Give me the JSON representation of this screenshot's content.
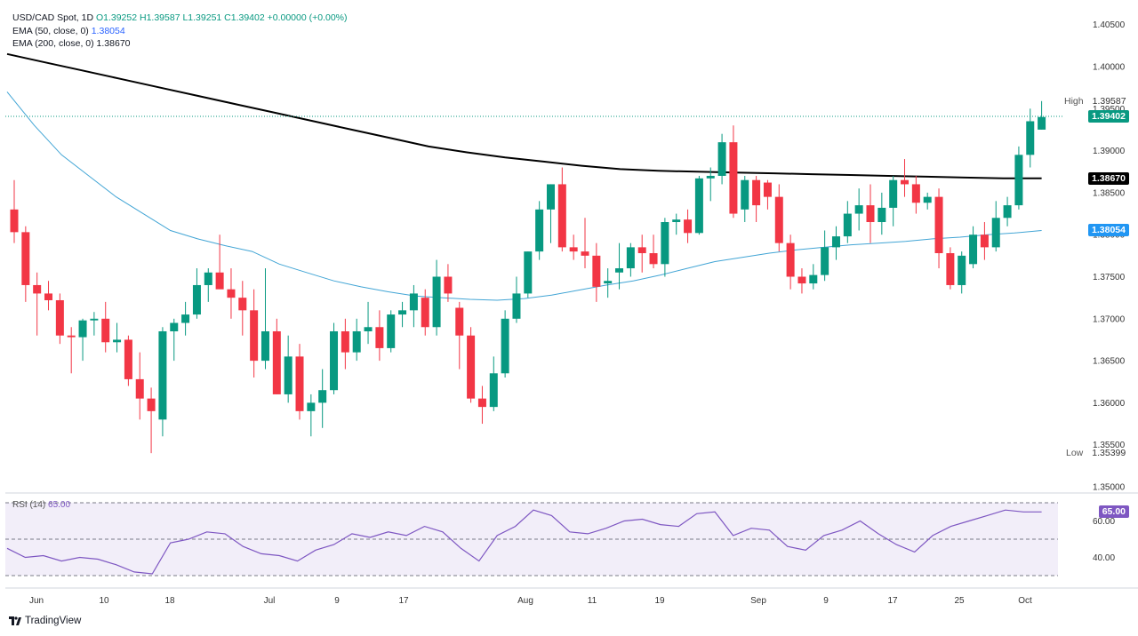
{
  "header": {
    "symbol_line": "USD/CAD Spot, 1D",
    "ohlc": "O1.39252 H1.39587 L1.39251 C1.39402 +0.00000 (+0.00%)",
    "ema50_label": "EMA (50, close, 0)",
    "ema50_value": "1.38054",
    "ema200_label": "EMA (200, close, 0)",
    "ema200_value": "1.38670"
  },
  "rsi_label": {
    "name": "RSI (14)",
    "value": "65.00"
  },
  "price_tags": {
    "high_label": "High",
    "high_value": "1.39587",
    "last": "1.39402",
    "ema200": "1.38670",
    "ema50": "1.38054",
    "low_label": "Low",
    "low_value": "1.35399",
    "rsi": "65.00"
  },
  "brand": "TradingView",
  "colors": {
    "up": "#089981",
    "down": "#f23645",
    "ema50": "#42a5d5",
    "ema200": "#000000",
    "rsi": "#7e57c2"
  },
  "chart_data": {
    "type": "candlestick",
    "y_ticks": [
      "1.40500",
      "1.40000",
      "1.39500",
      "1.39000",
      "1.38500",
      "1.38000",
      "1.37500",
      "1.37000",
      "1.36500",
      "1.36000",
      "1.35500",
      "1.35000"
    ],
    "x_ticks": [
      "Jun",
      "10",
      "18",
      "Jul",
      "9",
      "17",
      "Aug",
      "11",
      "19",
      "Sep",
      "9",
      "17",
      "25",
      "Oct"
    ],
    "ylim": [
      1.3485,
      1.4075
    ],
    "rsi_ticks": [
      "60.00",
      "40.00"
    ],
    "candles": [
      [
        1.383,
        1.3865,
        1.379,
        1.3803
      ],
      [
        1.3803,
        1.381,
        1.372,
        1.374
      ],
      [
        1.374,
        1.3755,
        1.368,
        1.373
      ],
      [
        1.373,
        1.3745,
        1.371,
        1.3722
      ],
      [
        1.3722,
        1.373,
        1.367,
        1.368
      ],
      [
        1.368,
        1.369,
        1.3635,
        1.3678
      ],
      [
        1.3678,
        1.37,
        1.365,
        1.3698
      ],
      [
        1.3698,
        1.3708,
        1.368,
        1.37
      ],
      [
        1.37,
        1.372,
        1.366,
        1.3672
      ],
      [
        1.3672,
        1.3695,
        1.366,
        1.3675
      ],
      [
        1.3675,
        1.368,
        1.362,
        1.3628
      ],
      [
        1.3628,
        1.366,
        1.358,
        1.3605
      ],
      [
        1.3605,
        1.3618,
        1.354,
        1.359
      ],
      [
        1.358,
        1.369,
        1.356,
        1.3685
      ],
      [
        1.3685,
        1.37,
        1.365,
        1.3695
      ],
      [
        1.3695,
        1.372,
        1.368,
        1.3705
      ],
      [
        1.3705,
        1.376,
        1.37,
        1.374
      ],
      [
        1.374,
        1.376,
        1.372,
        1.3755
      ],
      [
        1.3755,
        1.38,
        1.374,
        1.3735
      ],
      [
        1.3735,
        1.376,
        1.37,
        1.3725
      ],
      [
        1.3725,
        1.3745,
        1.368,
        1.371
      ],
      [
        1.371,
        1.3735,
        1.363,
        1.365
      ],
      [
        1.365,
        1.376,
        1.364,
        1.3685
      ],
      [
        1.3685,
        1.37,
        1.361,
        1.361
      ],
      [
        1.361,
        1.368,
        1.36,
        1.3655
      ],
      [
        1.3655,
        1.367,
        1.358,
        1.359
      ],
      [
        1.359,
        1.361,
        1.356,
        1.36
      ],
      [
        1.36,
        1.364,
        1.357,
        1.3615
      ],
      [
        1.3615,
        1.3695,
        1.361,
        1.3685
      ],
      [
        1.3685,
        1.37,
        1.364,
        1.366
      ],
      [
        1.366,
        1.37,
        1.365,
        1.3685
      ],
      [
        1.3685,
        1.372,
        1.367,
        1.369
      ],
      [
        1.369,
        1.371,
        1.365,
        1.3665
      ],
      [
        1.3665,
        1.371,
        1.366,
        1.3705
      ],
      [
        1.3705,
        1.372,
        1.369,
        1.371
      ],
      [
        1.371,
        1.374,
        1.369,
        1.373
      ],
      [
        1.3725,
        1.3735,
        1.368,
        1.369
      ],
      [
        1.369,
        1.377,
        1.368,
        1.375
      ],
      [
        1.375,
        1.3765,
        1.372,
        1.373
      ],
      [
        1.3713,
        1.372,
        1.364,
        1.368
      ],
      [
        1.368,
        1.369,
        1.36,
        1.3605
      ],
      [
        1.3605,
        1.362,
        1.3575,
        1.3595
      ],
      [
        1.3595,
        1.3655,
        1.359,
        1.3635
      ],
      [
        1.3635,
        1.371,
        1.363,
        1.37
      ],
      [
        1.37,
        1.375,
        1.3695,
        1.373
      ],
      [
        1.373,
        1.378,
        1.3725,
        1.378
      ],
      [
        1.378,
        1.384,
        1.377,
        1.383
      ],
      [
        1.383,
        1.386,
        1.379,
        1.386
      ],
      [
        1.386,
        1.388,
        1.378,
        1.3785
      ],
      [
        1.3785,
        1.38,
        1.377,
        1.378
      ],
      [
        1.378,
        1.382,
        1.376,
        1.3775
      ],
      [
        1.3775,
        1.379,
        1.372,
        1.3738
      ],
      [
        1.3742,
        1.376,
        1.3725,
        1.3745
      ],
      [
        1.3755,
        1.379,
        1.3735,
        1.376
      ],
      [
        1.376,
        1.379,
        1.375,
        1.3785
      ],
      [
        1.3785,
        1.38,
        1.3755,
        1.3778
      ],
      [
        1.3778,
        1.38,
        1.376,
        1.3765
      ],
      [
        1.3765,
        1.382,
        1.375,
        1.3815
      ],
      [
        1.3815,
        1.3825,
        1.38,
        1.3818
      ],
      [
        1.3818,
        1.383,
        1.379,
        1.3802
      ],
      [
        1.3802,
        1.387,
        1.38,
        1.3867
      ],
      [
        1.3867,
        1.388,
        1.384,
        1.387
      ],
      [
        1.387,
        1.392,
        1.386,
        1.391
      ],
      [
        1.391,
        1.393,
        1.382,
        1.3825
      ],
      [
        1.383,
        1.387,
        1.3815,
        1.3865
      ],
      [
        1.3865,
        1.387,
        1.3815,
        1.3835
      ],
      [
        1.3862,
        1.3865,
        1.383,
        1.3845
      ],
      [
        1.3845,
        1.386,
        1.378,
        1.379
      ],
      [
        1.379,
        1.38,
        1.3735,
        1.375
      ],
      [
        1.375,
        1.376,
        1.373,
        1.3742
      ],
      [
        1.3742,
        1.3765,
        1.3735,
        1.3752
      ],
      [
        1.3752,
        1.3805,
        1.3745,
        1.3785
      ],
      [
        1.3785,
        1.381,
        1.377,
        1.3798
      ],
      [
        1.3798,
        1.384,
        1.379,
        1.3825
      ],
      [
        1.3825,
        1.3855,
        1.3805,
        1.3835
      ],
      [
        1.3835,
        1.386,
        1.379,
        1.3815
      ],
      [
        1.3815,
        1.385,
        1.38,
        1.3832
      ],
      [
        1.3832,
        1.387,
        1.381,
        1.3865
      ],
      [
        1.3865,
        1.389,
        1.3845,
        1.386
      ],
      [
        1.386,
        1.387,
        1.3825,
        1.3838
      ],
      [
        1.3838,
        1.385,
        1.383,
        1.3845
      ],
      [
        1.3845,
        1.3855,
        1.376,
        1.3778
      ],
      [
        1.3778,
        1.3785,
        1.3735,
        1.374
      ],
      [
        1.374,
        1.378,
        1.373,
        1.3775
      ],
      [
        1.3765,
        1.381,
        1.376,
        1.38
      ],
      [
        1.38,
        1.3815,
        1.377,
        1.3785
      ],
      [
        1.3785,
        1.384,
        1.378,
        1.382
      ],
      [
        1.382,
        1.3845,
        1.381,
        1.3835
      ],
      [
        1.3835,
        1.3905,
        1.383,
        1.3895
      ],
      [
        1.3895,
        1.395,
        1.388,
        1.3935
      ],
      [
        1.3925,
        1.3959,
        1.3925,
        1.394
      ]
    ],
    "ema50": [
      1.397,
      1.393,
      1.3895,
      1.387,
      1.3845,
      1.3825,
      1.3805,
      1.3795,
      1.3787,
      1.378,
      1.3765,
      1.3755,
      1.3745,
      1.3738,
      1.3732,
      1.3727,
      1.3725,
      1.3723,
      1.3722,
      1.3724,
      1.3728,
      1.3734,
      1.374,
      1.3745,
      1.3752,
      1.376,
      1.3768,
      1.3773,
      1.3778,
      1.3782,
      1.3785,
      1.3788,
      1.379,
      1.3792,
      1.3795,
      1.3797,
      1.38,
      1.3802,
      1.3805
    ],
    "ema200": [
      1.4015,
      1.4005,
      1.3995,
      1.3985,
      1.3975,
      1.3965,
      1.3955,
      1.3945,
      1.3935,
      1.3925,
      1.3915,
      1.3905,
      1.3898,
      1.3892,
      1.3887,
      1.3882,
      1.3878,
      1.3876,
      1.3875,
      1.3874,
      1.3873,
      1.3872,
      1.3871,
      1.387,
      1.3869,
      1.3868,
      1.3867,
      1.3867
    ],
    "rsi": [
      45,
      40,
      41,
      38,
      40,
      39,
      36,
      32,
      31,
      48,
      50,
      54,
      53,
      46,
      42,
      41,
      38,
      44,
      47,
      53,
      51,
      54,
      52,
      57,
      54,
      45,
      38,
      52,
      57,
      66,
      63,
      54,
      53,
      56,
      60,
      61,
      58,
      57,
      64,
      65,
      52,
      56,
      55,
      46,
      44,
      52,
      55,
      60,
      53,
      47,
      43,
      52,
      57,
      60,
      63,
      66,
      65,
      65
    ]
  }
}
